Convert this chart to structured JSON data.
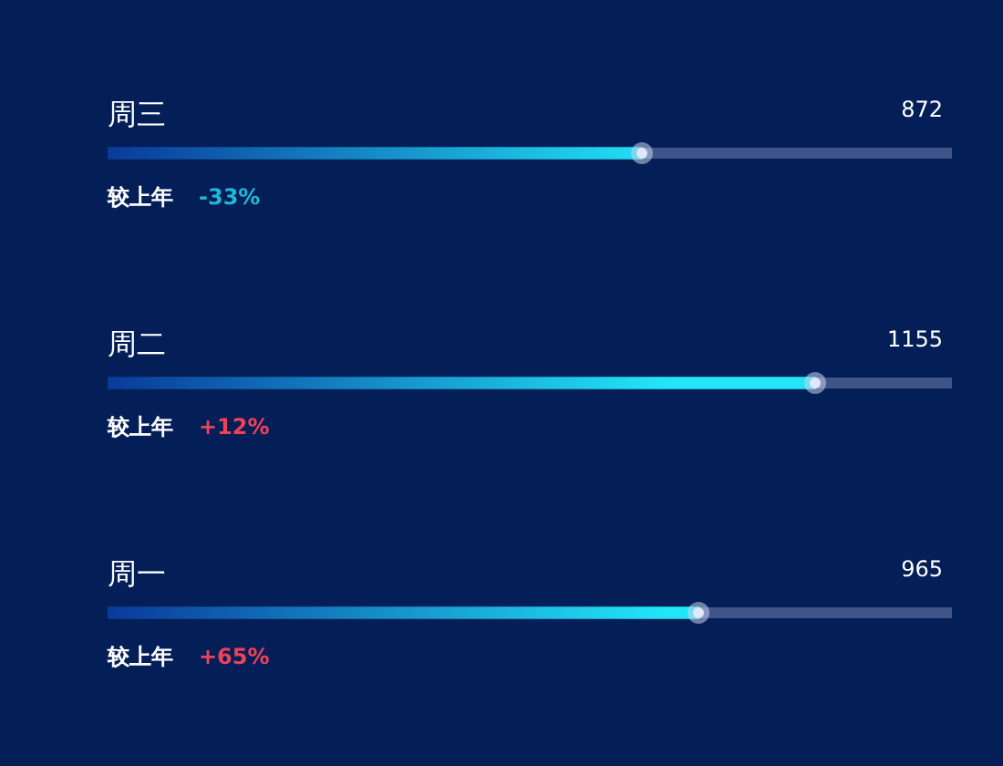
{
  "chart_data": {
    "type": "bar",
    "orientation": "horizontal",
    "categories": [
      "周三",
      "周二",
      "周一"
    ],
    "series": [
      {
        "color": "#22e6f8",
        "values": [
          872,
          1155,
          965
        ]
      }
    ],
    "xlim": [
      0,
      1378
    ],
    "tick_labels": false,
    "legend": false,
    "data_labels": true,
    "annotations": [
      "较上年",
      "-33%",
      "较上年",
      "+12%",
      "较上年",
      "+65%"
    ]
  }
}
